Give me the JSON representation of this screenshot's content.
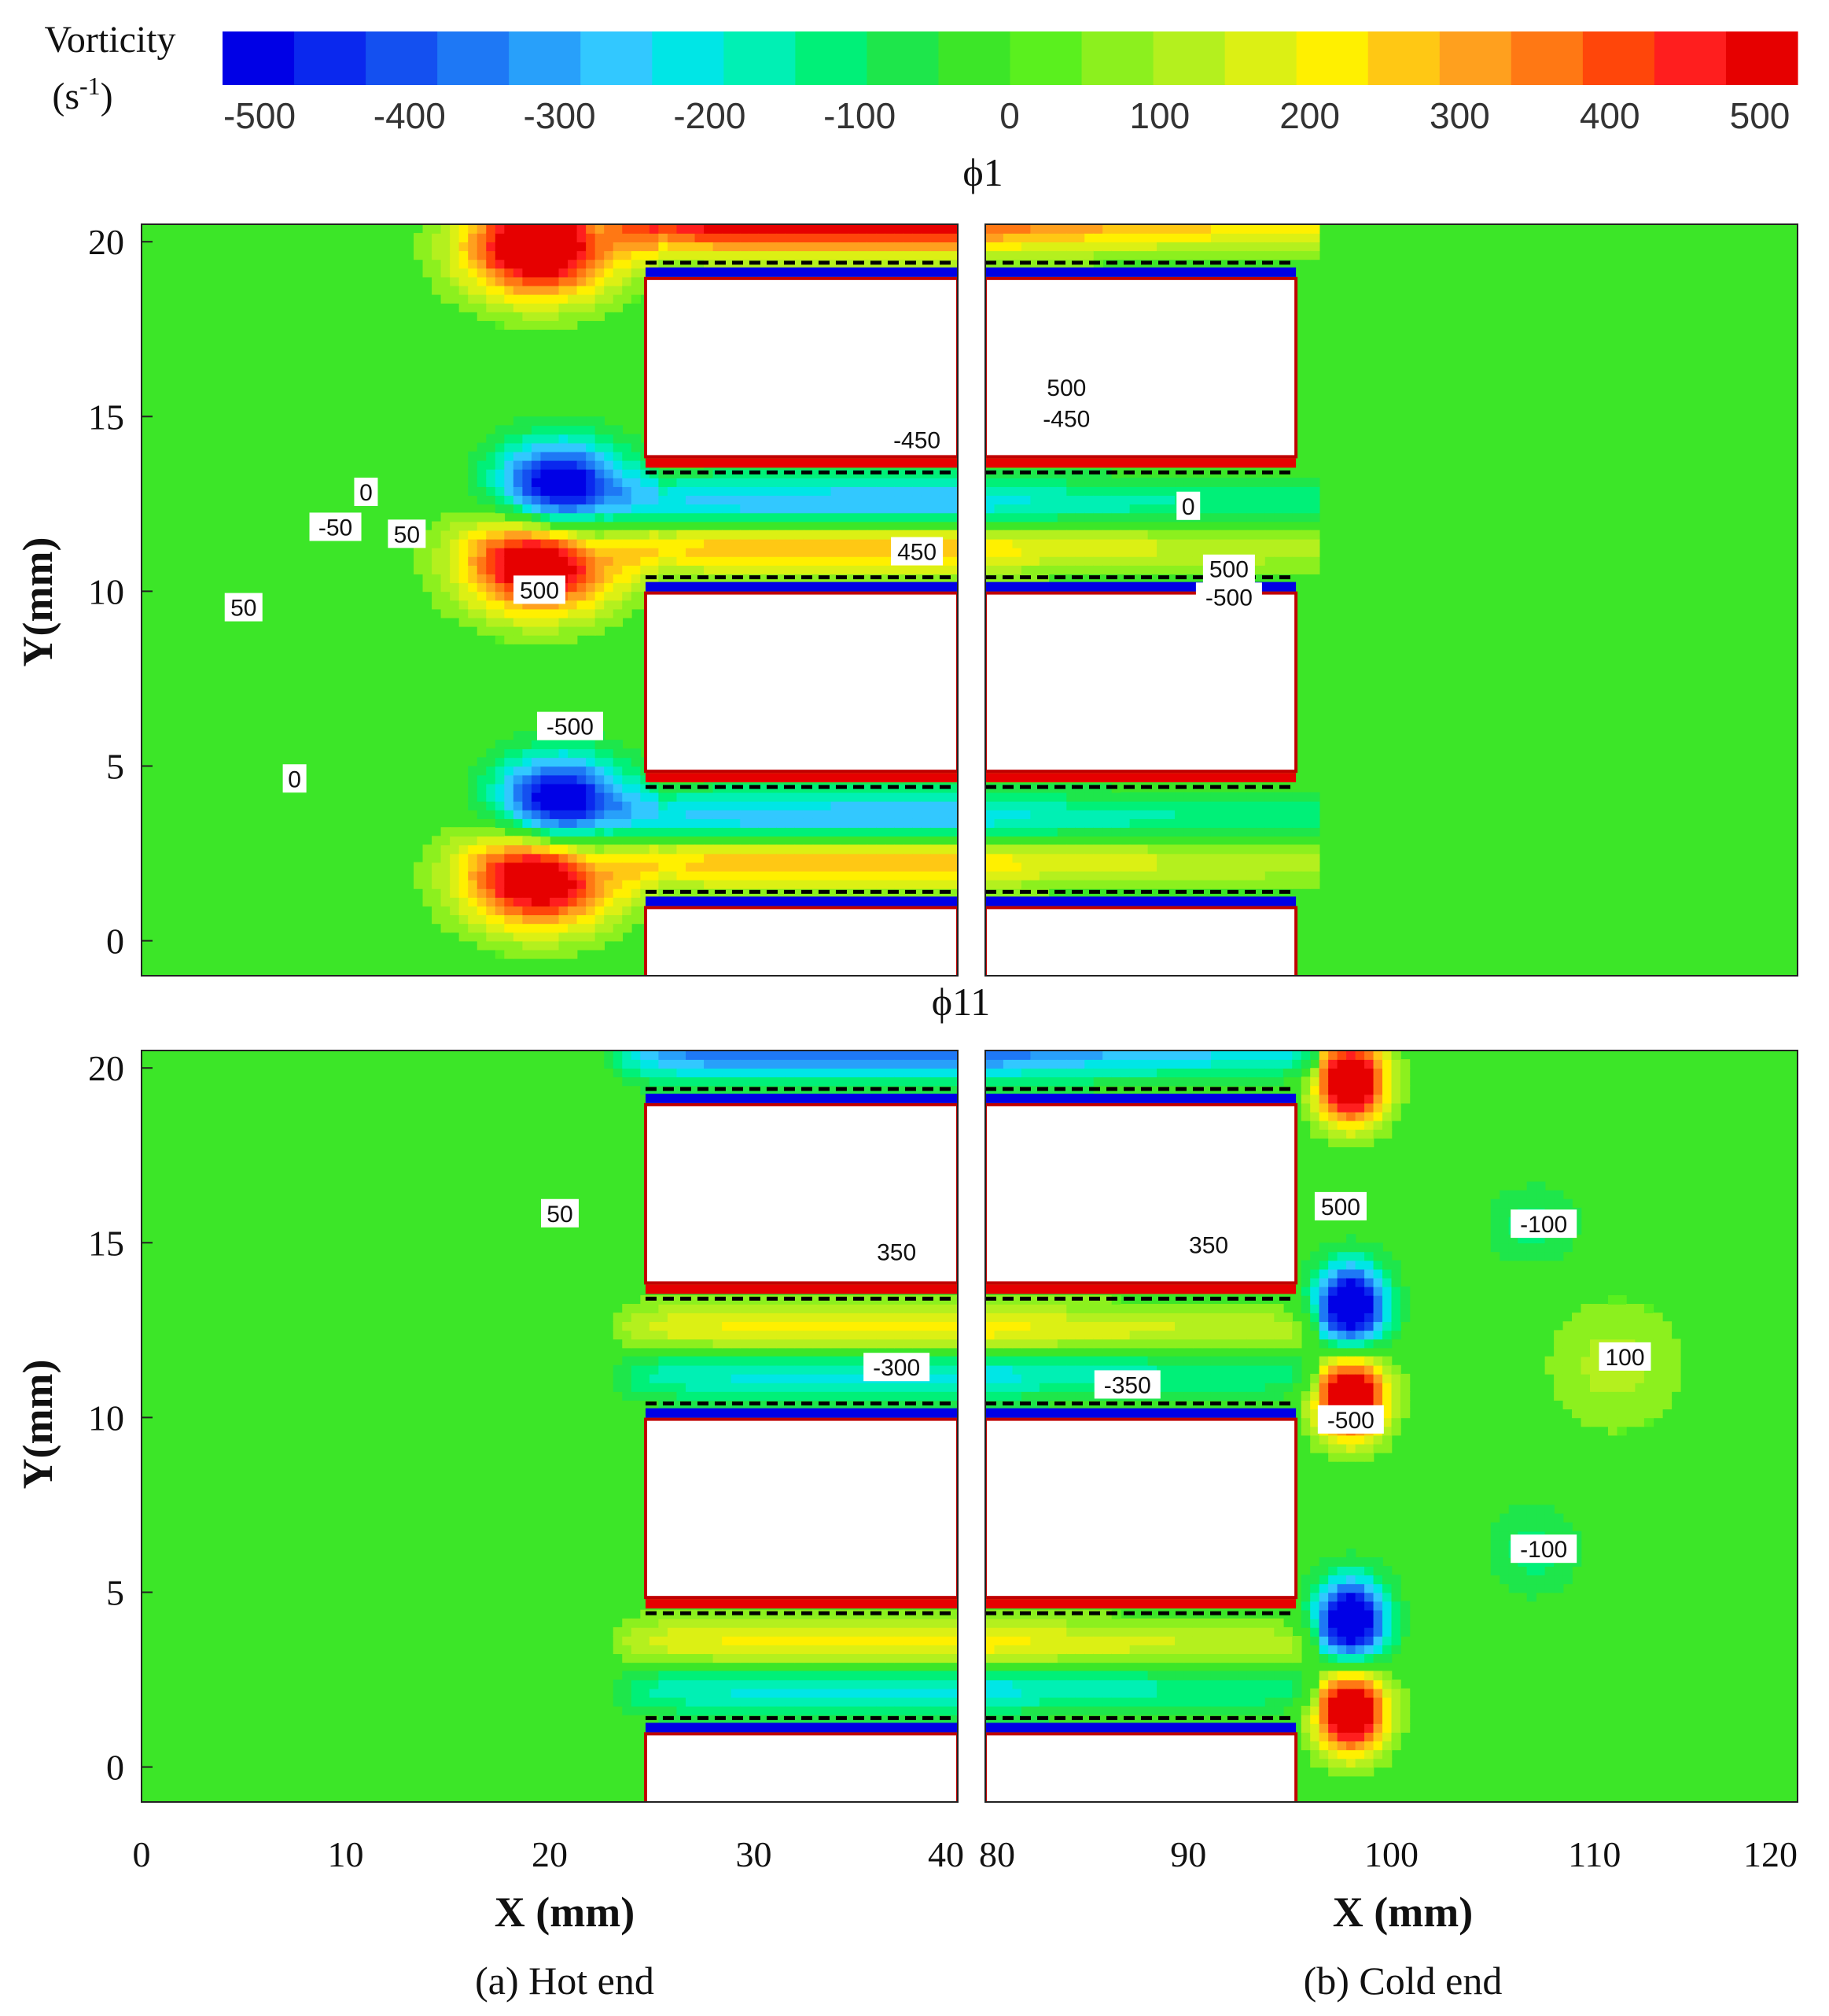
{
  "colorbar": {
    "title": "Vorticity",
    "unit_base": "(s",
    "unit_sup": "-1",
    "unit_close": ")",
    "min": -500,
    "max": 500,
    "ticks": [
      "-500",
      "-400",
      "-300",
      "-200",
      "-100",
      "0",
      "100",
      "200",
      "300",
      "400",
      "500"
    ],
    "colors": [
      "#0000e6",
      "#0a28ee",
      "#1450f0",
      "#1e78f5",
      "#28a0fa",
      "#32c8ff",
      "#00e6e6",
      "#00f0b4",
      "#00f078",
      "#1ee64b",
      "#3ce628",
      "#5af01e",
      "#8cf01e",
      "#b4f01e",
      "#dcf014",
      "#fff000",
      "#ffc814",
      "#ffa01e",
      "#ff7814",
      "#ff460a",
      "#ff1e1e",
      "#e60000"
    ]
  },
  "chart_data": [
    {
      "type": "contour",
      "title": "ϕ1",
      "panel": "(a) Hot end",
      "xlabel": "X (mm)",
      "ylabel": "Y(mm)",
      "xlim": [
        0,
        40
      ],
      "ylim": [
        -1,
        20.5
      ],
      "xticks": [
        "0",
        "10",
        "20",
        "30",
        "40"
      ],
      "yticks": [
        "0",
        "5",
        "10",
        "15",
        "20"
      ],
      "contour_labels": [
        {
          "text": "0",
          "x": 11,
          "y": 12.8
        },
        {
          "text": "-50",
          "x": 9.5,
          "y": 11.8
        },
        {
          "text": "50",
          "x": 13,
          "y": 11.6
        },
        {
          "text": "50",
          "x": 5,
          "y": 9.5
        },
        {
          "text": "500",
          "x": 19.5,
          "y": 10
        },
        {
          "text": "-500",
          "x": 21,
          "y": 6.1
        },
        {
          "text": "0",
          "x": 7.5,
          "y": 4.6
        },
        {
          "text": "-450",
          "x": 38,
          "y": 14.3
        },
        {
          "text": "450",
          "x": 38,
          "y": 11.1
        }
      ]
    },
    {
      "type": "contour",
      "title": "ϕ1",
      "panel": "(b) Cold end",
      "xlabel": "X (mm)",
      "ylabel": "Y(mm)",
      "xlim": [
        80,
        120
      ],
      "ylim": [
        -1,
        20.5
      ],
      "xticks": [
        "80",
        "90",
        "100",
        "110",
        "120"
      ],
      "yticks": [
        "0",
        "5",
        "10",
        "15",
        "20"
      ],
      "contour_labels": [
        {
          "text": "500",
          "x": 84,
          "y": 15.8
        },
        {
          "text": "-450",
          "x": 84,
          "y": 14.9
        },
        {
          "text": "0",
          "x": 90,
          "y": 12.4
        },
        {
          "text": "500",
          "x": 92,
          "y": 10.6
        },
        {
          "text": "-500",
          "x": 92,
          "y": 9.8
        }
      ]
    },
    {
      "type": "contour",
      "title": "ϕ11",
      "panel": "(a) Hot end",
      "xlabel": "X (mm)",
      "ylabel": "Y(mm)",
      "xlim": [
        0,
        40
      ],
      "ylim": [
        -1,
        20.5
      ],
      "xticks": [
        "0",
        "10",
        "20",
        "30",
        "40"
      ],
      "yticks": [
        "0",
        "5",
        "10",
        "15",
        "20"
      ],
      "contour_labels": [
        {
          "text": "50",
          "x": 20.5,
          "y": 15.8
        },
        {
          "text": "350",
          "x": 37,
          "y": 14.7
        },
        {
          "text": "-300",
          "x": 37,
          "y": 11.4
        }
      ]
    },
    {
      "type": "contour",
      "title": "ϕ11",
      "panel": "(b) Cold end",
      "xlabel": "X (mm)",
      "ylabel": "Y(mm)",
      "xlim": [
        80,
        120
      ],
      "ylim": [
        -1,
        20.5
      ],
      "xticks": [
        "80",
        "90",
        "100",
        "110",
        "120"
      ],
      "yticks": [
        "0",
        "5",
        "10",
        "15",
        "20"
      ],
      "contour_labels": [
        {
          "text": "500",
          "x": 97.5,
          "y": 16
        },
        {
          "text": "350",
          "x": 91,
          "y": 14.9
        },
        {
          "text": "-100",
          "x": 107.5,
          "y": 15.5
        },
        {
          "text": "100",
          "x": 111.5,
          "y": 11.7
        },
        {
          "text": "-350",
          "x": 87,
          "y": 10.9
        },
        {
          "text": "-500",
          "x": 98,
          "y": 9.9
        },
        {
          "text": "-100",
          "x": 107.5,
          "y": 6.2
        }
      ]
    }
  ],
  "captions": {
    "hot": "(a) Hot end",
    "cold": "(b) Cold end"
  }
}
